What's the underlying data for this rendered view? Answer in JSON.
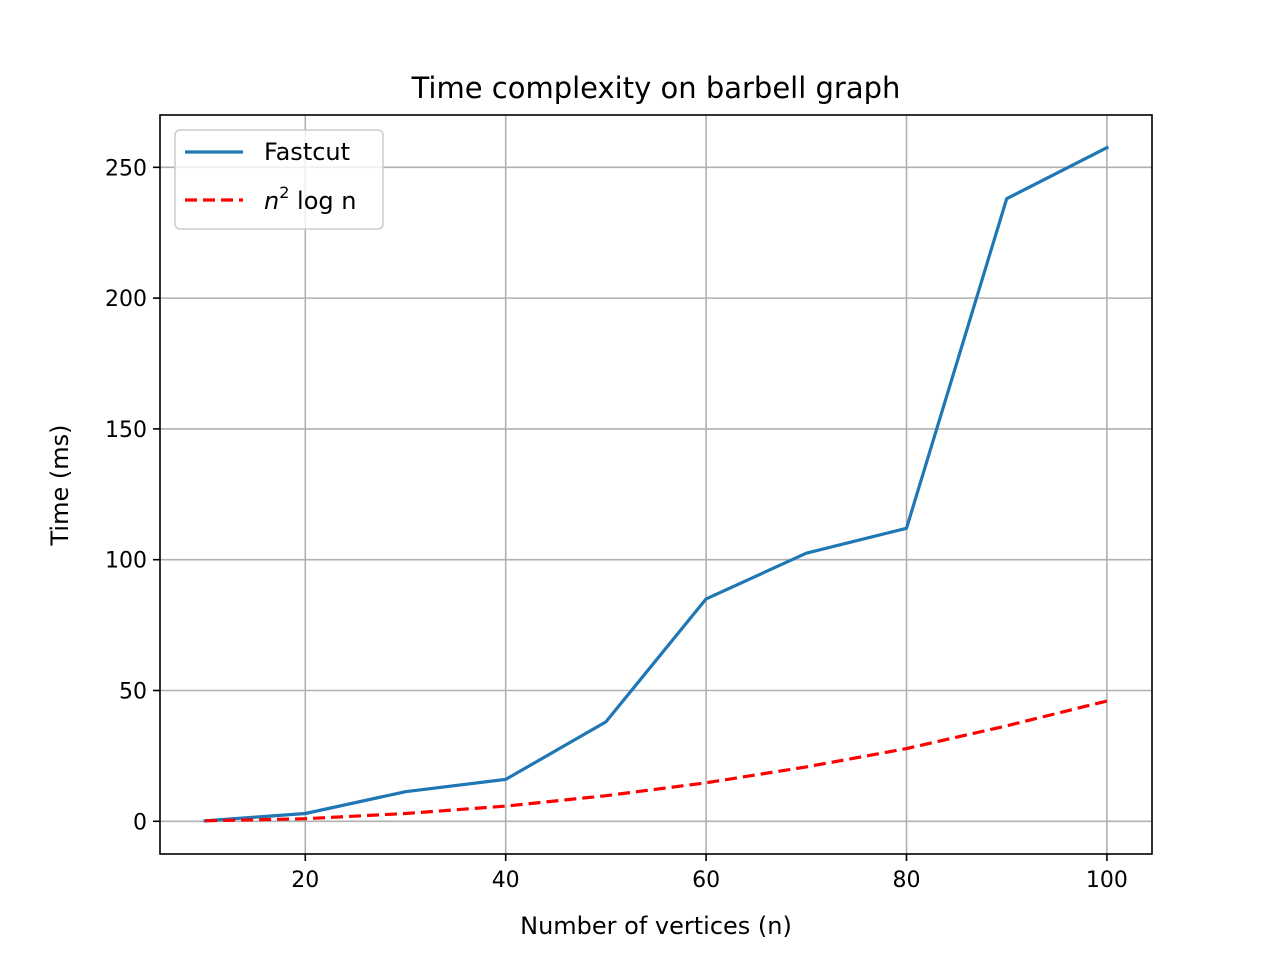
{
  "chart_data": {
    "type": "line",
    "title": "Time complexity on barbell graph",
    "xlabel": "Number of vertices (n)",
    "ylabel": "Time (ms)",
    "xlim": [
      5.5,
      104.5
    ],
    "ylim": [
      -12.5,
      270
    ],
    "x_ticks": [
      20,
      40,
      60,
      80,
      100
    ],
    "y_ticks": [
      0,
      50,
      100,
      150,
      200,
      250
    ],
    "grid": true,
    "legend_position": "top-left",
    "x": [
      10,
      20,
      30,
      40,
      50,
      60,
      70,
      80,
      90,
      100
    ],
    "series": [
      {
        "name": "Fastcut",
        "legend": {
          "main": "Fastcut"
        },
        "color": "#1f77b4",
        "style": "solid",
        "values": [
          0.2,
          3,
          11.3,
          16,
          38,
          85,
          102.5,
          112,
          238,
          257.5
        ]
      },
      {
        "name": "n² log n",
        "legend": {
          "var": "n",
          "sup": "2",
          "rest": " log n"
        },
        "color": "#ff0000",
        "style": "dashed",
        "values": [
          0.2,
          1.0,
          3.0,
          5.8,
          9.8,
          14.7,
          20.8,
          27.8,
          36.5,
          46.0
        ]
      }
    ]
  }
}
